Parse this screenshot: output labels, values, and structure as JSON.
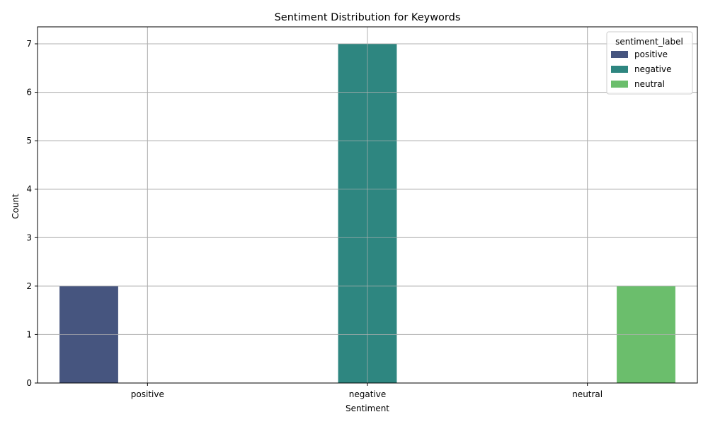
{
  "chart_data": {
    "type": "bar",
    "title": "Sentiment Distribution for Keywords",
    "xlabel": "Sentiment",
    "ylabel": "Count",
    "categories": [
      "positive",
      "negative",
      "neutral"
    ],
    "ylim": [
      0,
      7.35
    ],
    "yticks": [
      0,
      1,
      2,
      3,
      4,
      5,
      6,
      7
    ],
    "grid": true,
    "legend": {
      "title": "sentiment_label",
      "placement": "top-right"
    },
    "series": [
      {
        "name": "positive",
        "color": "#46557f",
        "values": [
          2,
          0,
          0
        ]
      },
      {
        "name": "negative",
        "color": "#2e8680",
        "values": [
          0,
          7,
          0
        ]
      },
      {
        "name": "neutral",
        "color": "#6bbe6c",
        "values": [
          0,
          0,
          2
        ]
      }
    ]
  }
}
